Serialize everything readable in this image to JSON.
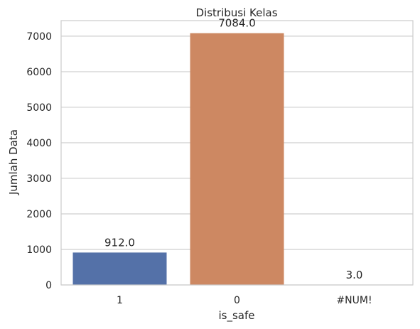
{
  "chart_data": {
    "type": "bar",
    "title": "Distribusi Kelas",
    "xlabel": "is_safe",
    "ylabel": "Jumlah Data",
    "categories": [
      "1",
      "0",
      "#NUM!"
    ],
    "values": [
      912,
      7084,
      3
    ],
    "data_labels": [
      "912.0",
      "7084.0",
      "3.0"
    ],
    "colors": [
      "#5471a8",
      "#cd8862",
      "#5b9e6c"
    ],
    "ylim": [
      0,
      7438
    ],
    "yticks": [
      0,
      1000,
      2000,
      3000,
      4000,
      5000,
      6000,
      7000
    ],
    "grid": "horizontal",
    "grid_color": "#cfcfcf",
    "frame_color": "#cccccc",
    "legend": "none"
  }
}
